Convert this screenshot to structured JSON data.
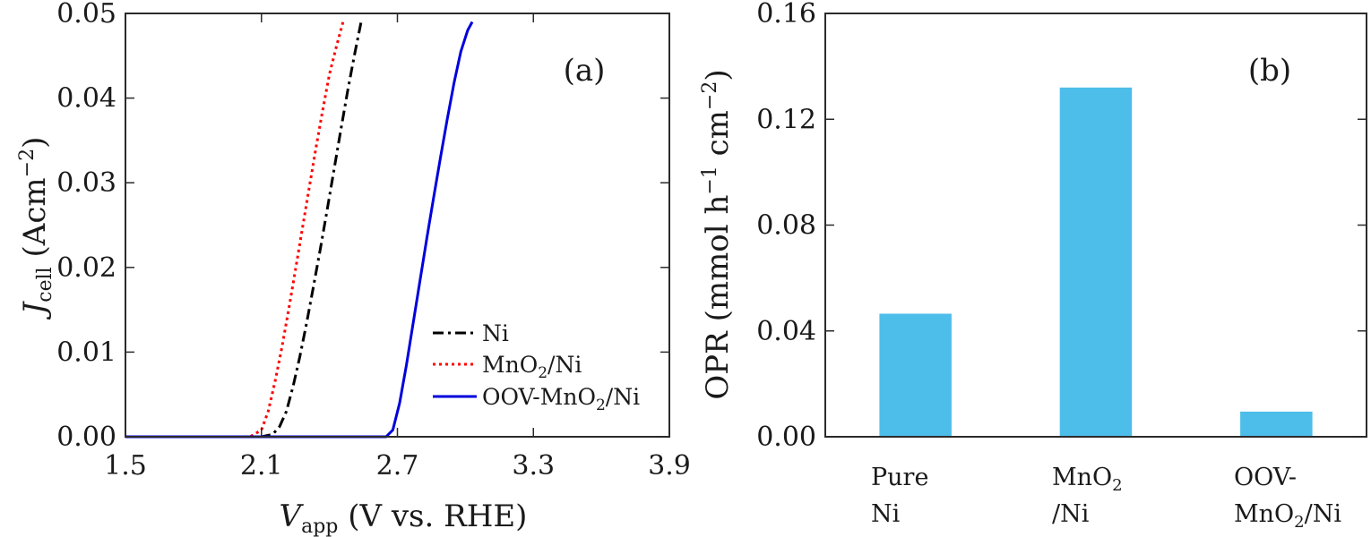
{
  "chart_data": [
    {
      "type": "line",
      "panel_label": "(a)",
      "xlabel": {
        "main": "V",
        "sub": "app",
        "rest": " (V vs. RHE)"
      },
      "ylabel": {
        "main": "J",
        "sub": "cell",
        "rest": " (Acm",
        "sup": "−2",
        "close": ")"
      },
      "xlim": [
        1.5,
        3.9
      ],
      "ylim": [
        0,
        0.05
      ],
      "xticks": [
        "1.5",
        "2.1",
        "2.7",
        "3.3",
        "3.9"
      ],
      "yticks": [
        "0.00",
        "0.01",
        "0.02",
        "0.03",
        "0.04",
        "0.05"
      ],
      "legend_position": "lower-right",
      "series": [
        {
          "name": "Ni",
          "legend": {
            "pre": "Ni",
            "sub": "",
            "post": ""
          },
          "color": "#000000",
          "style": "dashdot",
          "x": [
            1.5,
            2.1,
            2.15,
            2.18,
            2.21,
            2.24,
            2.27,
            2.3,
            2.33,
            2.36,
            2.39,
            2.42,
            2.45,
            2.48,
            2.51,
            2.54
          ],
          "y": [
            0.0,
            0.0,
            0.0003,
            0.0012,
            0.003,
            0.006,
            0.0095,
            0.0135,
            0.0178,
            0.0222,
            0.0268,
            0.0315,
            0.0362,
            0.0408,
            0.045,
            0.049
          ]
        },
        {
          "name": "MnO2/Ni",
          "legend": {
            "pre": "MnO",
            "sub": "2",
            "post": "/Ni"
          },
          "color": "#ff0000",
          "style": "dotted",
          "x": [
            1.5,
            2.05,
            2.1,
            2.13,
            2.16,
            2.19,
            2.22,
            2.25,
            2.28,
            2.31,
            2.34,
            2.37,
            2.4,
            2.43,
            2.46
          ],
          "y": [
            0.0,
            0.0,
            0.0008,
            0.003,
            0.0065,
            0.0105,
            0.015,
            0.0197,
            0.0245,
            0.0293,
            0.034,
            0.0385,
            0.0428,
            0.046,
            0.049
          ]
        },
        {
          "name": "OOV-MnO2/Ni",
          "legend": {
            "pre": "OOV-MnO",
            "sub": "2",
            "post": "/Ni"
          },
          "color": "#0000dd",
          "style": "solid",
          "x": [
            1.5,
            2.65,
            2.68,
            2.71,
            2.74,
            2.77,
            2.8,
            2.83,
            2.86,
            2.89,
            2.92,
            2.95,
            2.98,
            3.01,
            3.03
          ],
          "y": [
            0.0,
            0.0,
            0.0008,
            0.004,
            0.0085,
            0.0135,
            0.0185,
            0.0235,
            0.0283,
            0.033,
            0.0375,
            0.0418,
            0.0455,
            0.048,
            0.049
          ]
        }
      ]
    },
    {
      "type": "bar",
      "panel_label": "(b)",
      "ylabel": {
        "pre": "OPR (mmol h",
        "sup1": "−1",
        "mid": " cm",
        "sup2": "−2",
        "post": ")"
      },
      "ylim": [
        0,
        0.16
      ],
      "yticks": [
        "0.00",
        "0.04",
        "0.08",
        "0.12",
        "0.16"
      ],
      "categories": [
        {
          "name": "Pure Ni",
          "line1": {
            "pre": "Pure",
            "sub": "",
            "post": ""
          },
          "line2": {
            "pre": "Ni",
            "sub": "",
            "post": ""
          }
        },
        {
          "name": "MnO2/Ni",
          "line1": {
            "pre": "MnO",
            "sub": "2",
            "post": ""
          },
          "line2": {
            "pre": "/Ni",
            "sub": "",
            "post": ""
          }
        },
        {
          "name": "OOV-MnO2/Ni",
          "line1": {
            "pre": "OOV-",
            "sub": "",
            "post": ""
          },
          "line2": {
            "pre": "MnO",
            "sub": "2",
            "post": "/Ni"
          }
        }
      ],
      "values": [
        0.0465,
        0.132,
        0.0095
      ],
      "bar_color": "#4dbde9"
    }
  ]
}
